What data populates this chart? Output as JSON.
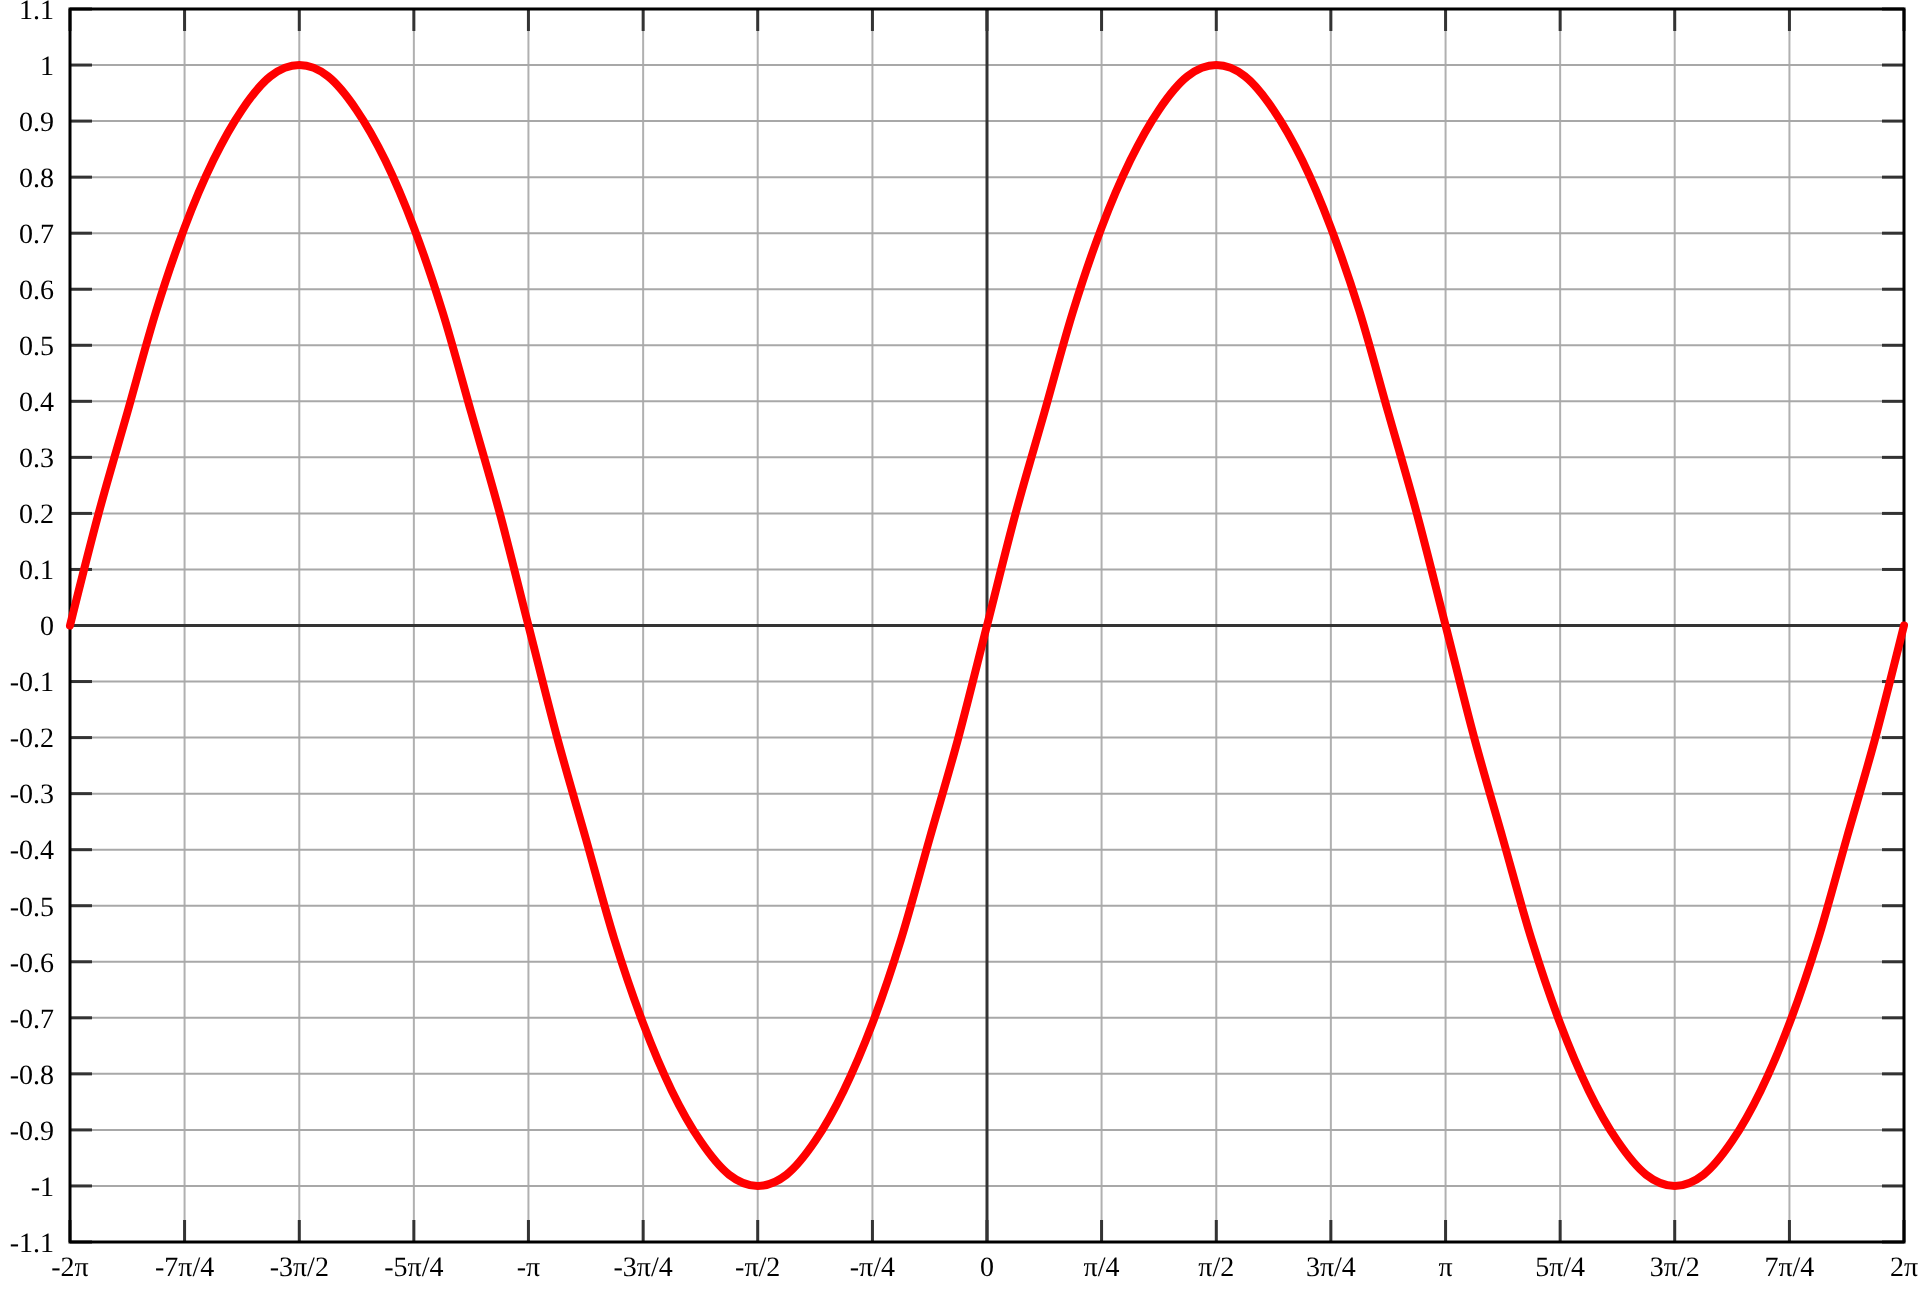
{
  "chart_data": {
    "type": "line",
    "x": [
      -6.283,
      -6.087,
      -5.89,
      -5.694,
      -5.498,
      -5.301,
      -5.105,
      -4.909,
      -4.712,
      -4.516,
      -4.32,
      -4.123,
      -3.927,
      -3.731,
      -3.534,
      -3.338,
      -3.142,
      -2.945,
      -2.749,
      -2.553,
      -2.356,
      -2.16,
      -1.963,
      -1.767,
      -1.571,
      -1.374,
      -1.178,
      -0.982,
      -0.785,
      -0.589,
      -0.393,
      -0.196,
      0,
      0.196,
      0.393,
      0.589,
      0.785,
      0.982,
      1.178,
      1.374,
      1.571,
      1.767,
      1.963,
      2.16,
      2.356,
      2.553,
      2.749,
      2.945,
      3.142,
      3.338,
      3.534,
      3.731,
      3.927,
      4.123,
      4.32,
      4.516,
      4.712,
      4.909,
      5.105,
      5.301,
      5.498,
      5.694,
      5.89,
      6.087,
      6.283
    ],
    "series": [
      {
        "color": "#ff0000",
        "values": [
          0,
          0.2,
          0.38,
          0.56,
          0.71,
          0.83,
          0.92,
          0.98,
          1,
          0.98,
          0.92,
          0.83,
          0.71,
          0.56,
          0.38,
          0.2,
          0,
          -0.2,
          -0.38,
          -0.56,
          -0.71,
          -0.83,
          -0.92,
          -0.98,
          -1,
          -0.98,
          -0.92,
          -0.83,
          -0.71,
          -0.56,
          -0.38,
          -0.2,
          0,
          0.2,
          0.38,
          0.56,
          0.71,
          0.83,
          0.92,
          0.98,
          1,
          0.98,
          0.92,
          0.83,
          0.71,
          0.56,
          0.38,
          0.2,
          0,
          -0.2,
          -0.38,
          -0.56,
          -0.71,
          -0.83,
          -0.92,
          -0.98,
          -1,
          -0.98,
          -0.92,
          -0.83,
          -0.71,
          -0.56,
          -0.38,
          -0.2,
          0
        ]
      }
    ],
    "xlim": [
      -6.283,
      6.283
    ],
    "xticks": [
      {
        "value": -6.283,
        "label": "-2π"
      },
      {
        "value": -5.498,
        "label": "-7π/4"
      },
      {
        "value": -4.712,
        "label": "-3π/2"
      },
      {
        "value": -3.927,
        "label": "-5π/4"
      },
      {
        "value": -3.142,
        "label": "-π"
      },
      {
        "value": -2.356,
        "label": "-3π/4"
      },
      {
        "value": -1.571,
        "label": "-π/2"
      },
      {
        "value": -0.785,
        "label": "-π/4"
      },
      0,
      {
        "value": 0.785,
        "label": "π/4"
      },
      {
        "value": 1.571,
        "label": "π/2"
      },
      {
        "value": 2.356,
        "label": "3π/4"
      },
      {
        "value": 3.142,
        "label": "π"
      },
      {
        "value": 3.927,
        "label": "5π/4"
      },
      {
        "value": 4.712,
        "label": "3π/2"
      },
      {
        "value": 5.498,
        "label": "7π/4"
      },
      {
        "value": 6.283,
        "label": "2π"
      }
    ],
    "ylim": [
      -1.1,
      1.1
    ],
    "yticks": [
      -1.1,
      -1,
      -0.9,
      -0.8,
      -0.7,
      -0.6,
      -0.5,
      -0.4,
      -0.3,
      -0.2,
      -0.1,
      0,
      0.1,
      0.2,
      0.3,
      0.4,
      0.5,
      0.6,
      0.7,
      0.8,
      0.9,
      1,
      1.1
    ],
    "grid": true,
    "line_style": "solid"
  }
}
